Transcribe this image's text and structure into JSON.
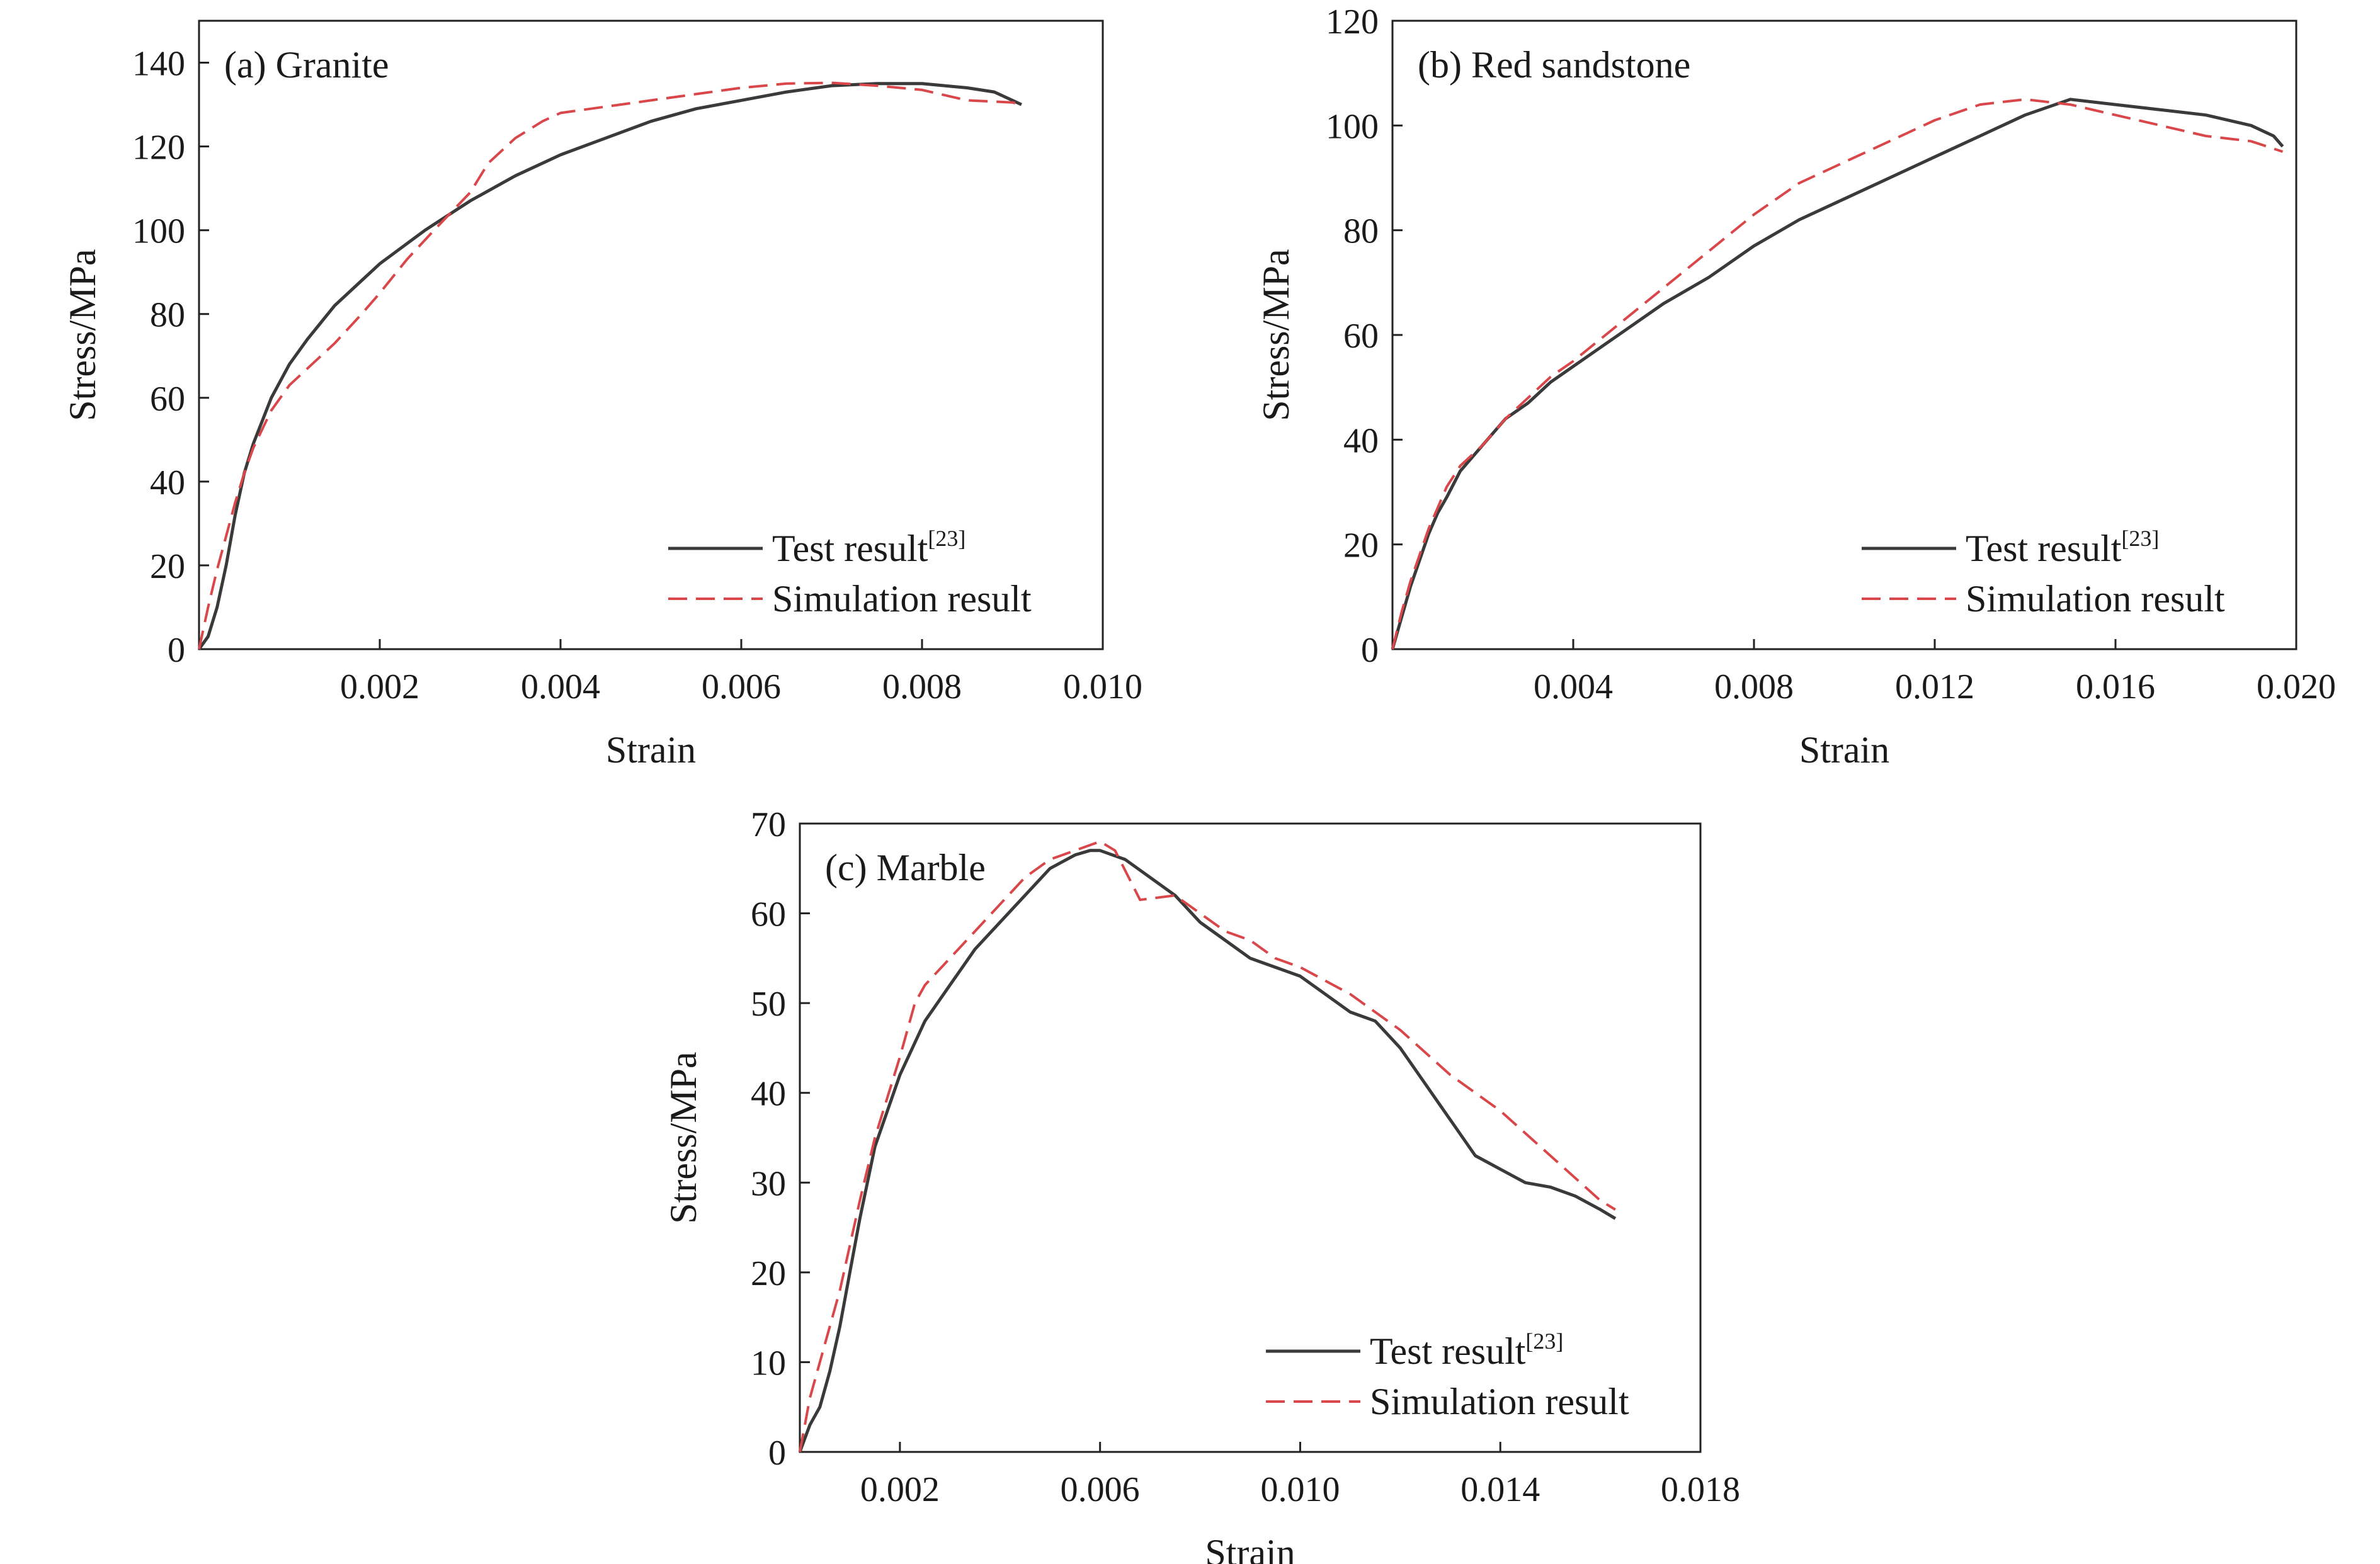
{
  "chart_data": [
    {
      "type": "line",
      "title": "(a) Granite",
      "xlabel": "Strain",
      "ylabel": "Stress/MPa",
      "xlim": [
        0,
        0.01
      ],
      "ylim": [
        0,
        150
      ],
      "xticks": [
        0.002,
        0.004,
        0.006,
        0.008,
        0.01
      ],
      "xtick_labels": [
        "0.002",
        "0.004",
        "0.006",
        "0.008",
        "0.010"
      ],
      "yticks": [
        0,
        20,
        40,
        60,
        80,
        100,
        120,
        140
      ],
      "ytick_labels": [
        "0",
        "20",
        "40",
        "60",
        "80",
        "100",
        "120",
        "140"
      ],
      "legend": {
        "position": "bottom-right",
        "test_label": "Test result",
        "test_sup": "[23]",
        "sim_label": "Simulation result"
      },
      "series": [
        {
          "name": "Test result[23]",
          "color": "#3a3a3a",
          "style": "solid",
          "x": [
            0,
            0.0001,
            0.0002,
            0.0003,
            0.0004,
            0.0005,
            0.0006,
            0.0008,
            0.001,
            0.0012,
            0.0015,
            0.0018,
            0.002,
            0.0025,
            0.003,
            0.0035,
            0.004,
            0.0045,
            0.005,
            0.0055,
            0.006,
            0.0065,
            0.007,
            0.0075,
            0.008,
            0.0085,
            0.0088,
            0.009,
            0.0091
          ],
          "y": [
            0,
            3,
            10,
            20,
            32,
            42,
            49,
            60,
            68,
            74,
            82,
            88,
            92,
            100,
            107,
            113,
            118,
            122,
            126,
            129,
            131,
            133,
            134.5,
            135,
            135,
            134,
            133,
            131,
            130
          ]
        },
        {
          "name": "Simulation result",
          "color": "#d9474b",
          "style": "dashed",
          "x": [
            0,
            0.0001,
            0.0002,
            0.0003,
            0.0004,
            0.0005,
            0.0006,
            0.0008,
            0.001,
            0.0012,
            0.0015,
            0.0018,
            0.002,
            0.0023,
            0.0026,
            0.003,
            0.0032,
            0.0035,
            0.0038,
            0.004,
            0.0045,
            0.005,
            0.0055,
            0.006,
            0.0065,
            0.007,
            0.0075,
            0.008,
            0.0085,
            0.009,
            0.0091
          ],
          "y": [
            0,
            10,
            19,
            27,
            35,
            42,
            48,
            57,
            63,
            67,
            73,
            80,
            85,
            93,
            100,
            109,
            116,
            122,
            126,
            128,
            129.5,
            131,
            132.5,
            134,
            135,
            135.2,
            134.5,
            133.5,
            131,
            130.5,
            130
          ]
        }
      ]
    },
    {
      "type": "line",
      "title": "(b) Red sandstone",
      "xlabel": "Strain",
      "ylabel": "Stress/MPa",
      "xlim": [
        0,
        0.02
      ],
      "ylim": [
        0,
        120
      ],
      "xticks": [
        0.004,
        0.008,
        0.012,
        0.016,
        0.02
      ],
      "xtick_labels": [
        "0.004",
        "0.008",
        "0.012",
        "0.016",
        "0.020"
      ],
      "yticks": [
        0,
        20,
        40,
        60,
        80,
        100,
        120
      ],
      "ytick_labels": [
        "0",
        "20",
        "40",
        "60",
        "80",
        "100",
        "120"
      ],
      "legend": {
        "position": "bottom-right",
        "test_label": "Test result",
        "test_sup": "[23]",
        "sim_label": "Simulation result"
      },
      "series": [
        {
          "name": "Test result[23]",
          "color": "#3a3a3a",
          "style": "solid",
          "x": [
            0,
            0.0002,
            0.0004,
            0.0006,
            0.0008,
            0.001,
            0.0012,
            0.0015,
            0.002,
            0.0025,
            0.003,
            0.0035,
            0.004,
            0.005,
            0.006,
            0.007,
            0.008,
            0.009,
            0.01,
            0.011,
            0.012,
            0.013,
            0.014,
            0.015,
            0.016,
            0.017,
            0.018,
            0.019,
            0.0195,
            0.0197
          ],
          "y": [
            0,
            6,
            12,
            17,
            22,
            26,
            29,
            34,
            39,
            44,
            47,
            51,
            54,
            60,
            66,
            71,
            77,
            82,
            86,
            90,
            94,
            98,
            102,
            105,
            104,
            103,
            102,
            100,
            98,
            96
          ]
        },
        {
          "name": "Simulation result",
          "color": "#d9474b",
          "style": "dashed",
          "x": [
            0,
            0.0002,
            0.0004,
            0.0006,
            0.0008,
            0.001,
            0.0012,
            0.0015,
            0.002,
            0.0025,
            0.003,
            0.0035,
            0.004,
            0.005,
            0.006,
            0.007,
            0.008,
            0.009,
            0.01,
            0.011,
            0.012,
            0.013,
            0.014,
            0.015,
            0.016,
            0.017,
            0.018,
            0.019,
            0.0197
          ],
          "y": [
            0,
            7,
            13,
            18,
            23,
            27,
            31,
            35,
            39,
            44,
            48,
            52,
            55,
            62,
            69,
            76,
            83,
            89,
            93,
            97,
            101,
            104,
            105,
            104,
            102,
            100,
            98,
            97,
            95
          ]
        }
      ]
    },
    {
      "type": "line",
      "title": "(c) Marble",
      "xlabel": "Strain",
      "ylabel": "Stress/MPa",
      "xlim": [
        0,
        0.018
      ],
      "ylim": [
        0,
        70
      ],
      "xticks": [
        0.002,
        0.006,
        0.01,
        0.014,
        0.018
      ],
      "xtick_labels": [
        "0.002",
        "0.006",
        "0.010",
        "0.014",
        "0.018"
      ],
      "yticks": [
        0,
        10,
        20,
        30,
        40,
        50,
        60,
        70
      ],
      "ytick_labels": [
        "0",
        "10",
        "20",
        "30",
        "40",
        "50",
        "60",
        "70"
      ],
      "legend": {
        "position": "bottom-right",
        "test_label": "Test result",
        "test_sup": "[23]",
        "sim_label": "Simulation result"
      },
      "series": [
        {
          "name": "Test result[23]",
          "color": "#3a3a3a",
          "style": "solid",
          "x": [
            0,
            0.0002,
            0.0004,
            0.0006,
            0.0008,
            0.001,
            0.0012,
            0.0015,
            0.002,
            0.0025,
            0.003,
            0.0035,
            0.004,
            0.0045,
            0.005,
            0.0055,
            0.0058,
            0.006,
            0.0065,
            0.007,
            0.0075,
            0.008,
            0.0085,
            0.009,
            0.0095,
            0.01,
            0.0105,
            0.011,
            0.0115,
            0.012,
            0.0125,
            0.013,
            0.0135,
            0.014,
            0.0145,
            0.015,
            0.0155,
            0.016,
            0.0163
          ],
          "y": [
            0,
            3,
            5,
            9,
            14,
            20,
            26,
            34,
            42,
            48,
            52,
            56,
            59,
            62,
            65,
            66.5,
            67,
            67,
            66,
            64,
            62,
            59,
            57,
            55,
            54,
            53,
            51,
            49,
            48,
            45,
            41,
            37,
            33,
            31.5,
            30,
            29.5,
            28.5,
            27,
            26
          ]
        },
        {
          "name": "Simulation result",
          "color": "#d9474b",
          "style": "dashed",
          "x": [
            0,
            0.0002,
            0.0004,
            0.0006,
            0.0008,
            0.001,
            0.0012,
            0.0015,
            0.002,
            0.0023,
            0.0025,
            0.003,
            0.0035,
            0.004,
            0.0045,
            0.005,
            0.0055,
            0.006,
            0.0063,
            0.0068,
            0.0075,
            0.008,
            0.0085,
            0.009,
            0.0095,
            0.01,
            0.011,
            0.012,
            0.013,
            0.014,
            0.015,
            0.016,
            0.0163
          ],
          "y": [
            0,
            6,
            10,
            14,
            18,
            23,
            28,
            35,
            44,
            50,
            52,
            55,
            58,
            61,
            64,
            66,
            67,
            68,
            67,
            61.5,
            62,
            60,
            58,
            57,
            55,
            54,
            51,
            47,
            42,
            38,
            33,
            28,
            27
          ]
        }
      ]
    }
  ]
}
